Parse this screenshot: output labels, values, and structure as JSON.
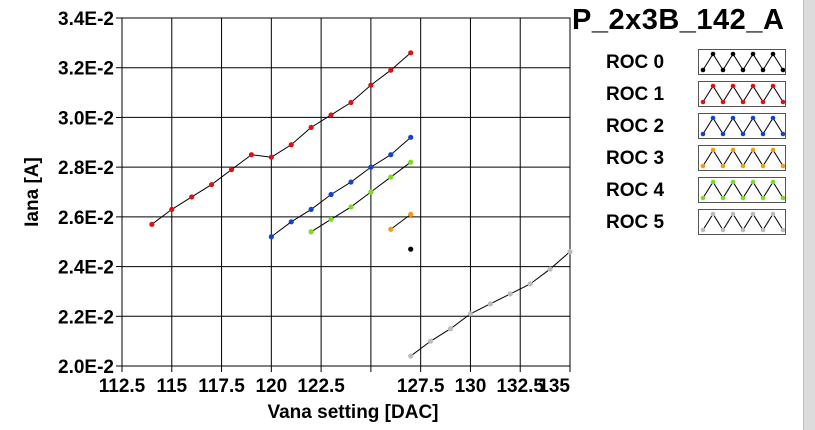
{
  "title": "P_2x3B_142_A",
  "chart_data": {
    "type": "scatter",
    "title": "P_2x3B_142_A",
    "xlabel": "Vana setting [DAC]",
    "ylabel": "Iana [A]",
    "xlim": [
      112.5,
      135
    ],
    "ylim": [
      0.02,
      0.034
    ],
    "x_ticks": [
      112.5,
      115,
      117.5,
      120,
      122.5,
      125,
      127.5,
      130,
      132.5,
      135
    ],
    "x_tick_labels": [
      "112.5",
      "115",
      "117.5",
      "120",
      "122.5",
      "",
      "127.5",
      "130",
      "132.5",
      "135"
    ],
    "y_ticks": [
      0.02,
      0.022,
      0.024,
      0.026,
      0.028,
      0.03,
      0.032,
      0.034
    ],
    "y_tick_labels": [
      "2.0E-2",
      "2.2E-2",
      "2.4E-2",
      "2.6E-2",
      "2.8E-2",
      "3.0E-2",
      "3.2E-2",
      "3.4E-2"
    ],
    "grid": true,
    "legend_position": "right",
    "series": [
      {
        "name": "ROC 0",
        "color": "#000000",
        "x": [
          127
        ],
        "y": [
          0.0247
        ]
      },
      {
        "name": "ROC 1",
        "color": "#dd1111",
        "x": [
          114,
          115,
          116,
          117,
          118,
          119,
          120,
          121,
          122,
          123,
          124,
          125,
          126,
          127
        ],
        "y": [
          0.0257,
          0.0263,
          0.0268,
          0.0273,
          0.0279,
          0.0285,
          0.0284,
          0.0289,
          0.0296,
          0.0301,
          0.0306,
          0.0313,
          0.0319,
          0.0326
        ]
      },
      {
        "name": "ROC 2",
        "color": "#1144cc",
        "x": [
          120,
          121,
          122,
          123,
          124,
          125,
          126,
          127
        ],
        "y": [
          0.0252,
          0.0258,
          0.0263,
          0.0269,
          0.0274,
          0.028,
          0.0285,
          0.0292
        ]
      },
      {
        "name": "ROC 3",
        "color": "#f39c12",
        "x": [
          126,
          127
        ],
        "y": [
          0.0255,
          0.0261
        ]
      },
      {
        "name": "ROC 4",
        "color": "#77dd22",
        "x": [
          122,
          123,
          124,
          125,
          126,
          127
        ],
        "y": [
          0.0254,
          0.0259,
          0.0264,
          0.027,
          0.0276,
          0.0282
        ]
      },
      {
        "name": "ROC 5",
        "color": "#bbbbbb",
        "x": [
          127,
          128,
          129,
          130,
          131,
          132,
          133,
          134,
          135
        ],
        "y": [
          0.0204,
          0.021,
          0.0215,
          0.0221,
          0.0225,
          0.0229,
          0.0233,
          0.0239,
          0.0246
        ]
      }
    ]
  }
}
